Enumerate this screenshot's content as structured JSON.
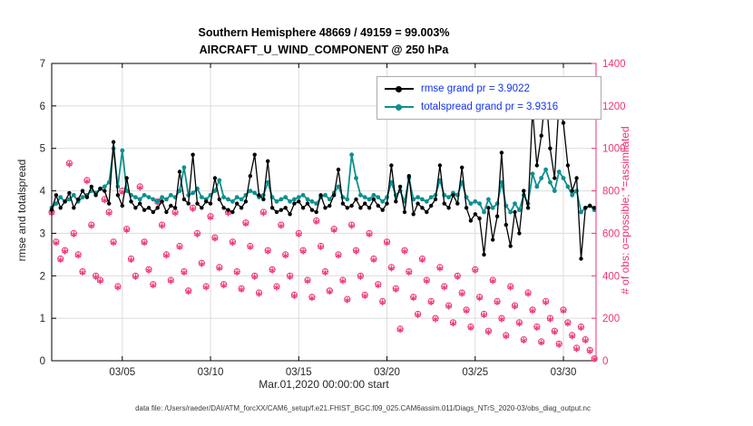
{
  "footer": {
    "text": "data file: /Users/raeder/DAI/ATM_forcXX/CAM6_setup/f.e21.FHIST_BGC.f09_025.CAM6assim.011/Diags_NTrS_2020-03/obs_diag_output.nc"
  },
  "chart_data": {
    "type": "line",
    "title": "Southern Hemisphere 48669 / 49159 = 99.003%",
    "subtitle": "AIRCRAFT_U_WIND_COMPONENT @ 250 hPa",
    "xlabel": "Mar.01,2020 00:00:00 start",
    "ylabel_left": "rmse and totalspread",
    "ylabel_right": "# of obs: o=possible; *=assimilated",
    "xlim": [
      1,
      31.85
    ],
    "ylim_left": [
      0,
      7
    ],
    "ylim_right": [
      0,
      1400
    ],
    "grid": true,
    "legend_position": "top-right-inside",
    "x_start": 1.0,
    "x_step": 0.25,
    "xticks": [
      {
        "day": 5,
        "label": "03/05"
      },
      {
        "day": 10,
        "label": "03/10"
      },
      {
        "day": 15,
        "label": "03/15"
      },
      {
        "day": 20,
        "label": "03/20"
      },
      {
        "day": 25,
        "label": "03/25"
      },
      {
        "day": 30,
        "label": "03/30"
      }
    ],
    "yticks_left": [
      0,
      1,
      2,
      3,
      4,
      5,
      6,
      7
    ],
    "yticks_right": [
      0,
      200,
      400,
      600,
      800,
      1000,
      1200,
      1400
    ],
    "colors": {
      "right_axis": "#ee3377",
      "legend_text": "#1133ee",
      "grid": "#dcdcdc",
      "axis": "#000000",
      "tick_label": "#262626"
    },
    "series": [
      {
        "name": "rmse",
        "legend": "rmse grand pr = 3.9022",
        "color": "#000000",
        "axis": "left",
        "marker": "filled-circle",
        "values": [
          3.55,
          3.9,
          3.6,
          3.75,
          3.95,
          3.6,
          3.8,
          4.0,
          3.85,
          4.1,
          3.9,
          4.05,
          4.0,
          3.7,
          5.15,
          3.9,
          3.65,
          4.3,
          3.75,
          3.6,
          3.7,
          3.55,
          3.6,
          3.5,
          3.6,
          3.75,
          3.5,
          3.65,
          3.6,
          4.45,
          3.8,
          3.7,
          4.85,
          3.7,
          3.6,
          3.75,
          3.7,
          4.3,
          3.8,
          3.6,
          3.55,
          3.5,
          3.7,
          3.6,
          3.75,
          4.35,
          4.85,
          3.9,
          3.8,
          4.7,
          3.6,
          3.5,
          3.55,
          3.6,
          3.45,
          3.7,
          3.75,
          3.6,
          3.7,
          3.55,
          3.5,
          3.9,
          3.6,
          3.65,
          3.9,
          4.5,
          3.7,
          3.6,
          3.65,
          3.8,
          3.6,
          3.7,
          3.6,
          3.8,
          3.65,
          3.55,
          3.7,
          4.6,
          3.75,
          4.1,
          3.5,
          4.35,
          3.45,
          3.7,
          3.6,
          3.5,
          3.65,
          3.8,
          4.6,
          3.7,
          3.6,
          3.9,
          3.7,
          4.55,
          3.6,
          3.3,
          3.45,
          3.35,
          2.5,
          3.6,
          2.85,
          3.4,
          4.9,
          3.2,
          2.7,
          3.5,
          3.0,
          4.0,
          3.6,
          5.9,
          4.6,
          5.3,
          6.35,
          5.0,
          4.3,
          6.1,
          5.6,
          4.6,
          4.0,
          4.3,
          2.4,
          3.6,
          3.65,
          3.6
        ]
      },
      {
        "name": "totalspread",
        "legend": "totalspread grand pr = 3.9316",
        "color": "#0e8f8f",
        "axis": "left",
        "marker": "filled-circle",
        "values": [
          3.6,
          3.7,
          3.85,
          3.75,
          3.8,
          3.9,
          3.75,
          3.85,
          3.9,
          4.0,
          3.95,
          4.05,
          4.1,
          4.2,
          5.0,
          4.1,
          4.95,
          4.0,
          3.9,
          3.85,
          3.8,
          3.9,
          3.85,
          3.8,
          3.75,
          3.85,
          3.8,
          3.9,
          3.85,
          4.0,
          4.55,
          3.9,
          3.95,
          4.05,
          3.85,
          3.8,
          3.9,
          4.0,
          4.25,
          3.85,
          3.8,
          3.75,
          3.85,
          3.8,
          3.9,
          4.0,
          3.95,
          3.85,
          3.9,
          4.2,
          3.85,
          3.75,
          3.8,
          3.85,
          3.75,
          3.8,
          3.85,
          3.9,
          3.8,
          3.75,
          3.7,
          3.85,
          3.9,
          3.8,
          3.95,
          4.1,
          3.85,
          3.8,
          4.85,
          4.3,
          3.9,
          3.85,
          3.8,
          3.9,
          3.85,
          3.75,
          3.85,
          4.2,
          3.9,
          4.0,
          3.75,
          4.3,
          3.8,
          3.85,
          3.8,
          3.75,
          3.85,
          3.9,
          4.25,
          3.9,
          3.85,
          3.95,
          3.9,
          4.2,
          3.85,
          3.7,
          3.75,
          3.7,
          3.5,
          3.8,
          3.6,
          3.7,
          4.2,
          3.65,
          3.5,
          3.7,
          3.55,
          3.9,
          3.7,
          4.4,
          4.1,
          4.3,
          4.5,
          4.2,
          4.0,
          4.45,
          4.3,
          4.1,
          3.9,
          4.0,
          3.5,
          3.6,
          3.65,
          3.55
        ]
      },
      {
        "name": "possible_obs",
        "legend": "o=possible",
        "color": "#ee3377",
        "axis": "right",
        "marker": "open-circle",
        "values": [
          700,
          560,
          480,
          520,
          930,
          600,
          500,
          420,
          850,
          640,
          400,
          380,
          760,
          700,
          560,
          350,
          800,
          620,
          480,
          400,
          820,
          560,
          430,
          360,
          750,
          640,
          500,
          380,
          700,
          540,
          420,
          330,
          720,
          600,
          460,
          350,
          680,
          580,
          440,
          360,
          700,
          560,
          420,
          340,
          650,
          540,
          400,
          320,
          700,
          520,
          430,
          350,
          640,
          500,
          400,
          310,
          600,
          520,
          380,
          300,
          660,
          540,
          420,
          330,
          620,
          500,
          380,
          290,
          640,
          520,
          400,
          310,
          600,
          480,
          360,
          280,
          560,
          440,
          340,
          150,
          520,
          420,
          300,
          220,
          480,
          380,
          280,
          200,
          440,
          350,
          260,
          180,
          400,
          320,
          240,
          160,
          430,
          300,
          220,
          140,
          380,
          280,
          200,
          120,
          350,
          260,
          180,
          100,
          320,
          240,
          160,
          90,
          280,
          200,
          140,
          80,
          240,
          180,
          120,
          60,
          160,
          100,
          50,
          10
        ]
      },
      {
        "name": "assimilated_obs",
        "legend": "*=assimilated",
        "color": "#ee3377",
        "axis": "right",
        "marker": "asterisk",
        "values": [
          695,
          555,
          475,
          515,
          925,
          595,
          495,
          415,
          845,
          635,
          395,
          375,
          755,
          695,
          555,
          345,
          795,
          615,
          475,
          395,
          815,
          555,
          425,
          355,
          745,
          635,
          495,
          375,
          695,
          535,
          415,
          325,
          715,
          595,
          455,
          345,
          675,
          575,
          435,
          355,
          695,
          555,
          415,
          335,
          645,
          535,
          395,
          315,
          695,
          515,
          425,
          345,
          635,
          495,
          395,
          305,
          595,
          515,
          375,
          295,
          655,
          535,
          415,
          325,
          615,
          495,
          375,
          285,
          635,
          515,
          395,
          305,
          595,
          475,
          355,
          275,
          555,
          435,
          335,
          145,
          515,
          415,
          295,
          215,
          475,
          375,
          275,
          195,
          435,
          345,
          255,
          175,
          395,
          315,
          235,
          155,
          425,
          295,
          215,
          135,
          375,
          275,
          195,
          115,
          345,
          255,
          175,
          95,
          315,
          235,
          155,
          85,
          275,
          195,
          135,
          75,
          235,
          175,
          115,
          55,
          155,
          95,
          45,
          8
        ]
      }
    ]
  }
}
